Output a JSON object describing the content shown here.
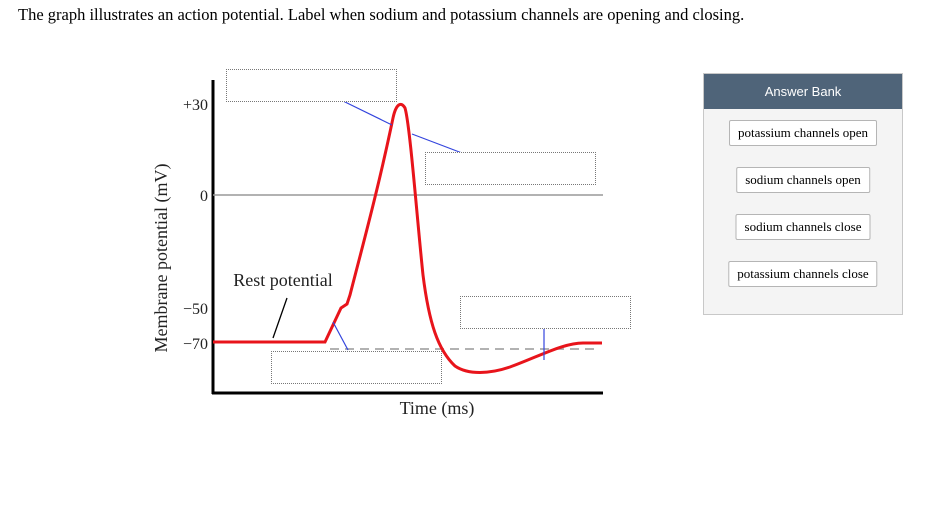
{
  "question": "The graph illustrates an action potential. Label when sodium and potassium channels are opening and closing.",
  "graph": {
    "y_axis_label": "Membrane potential (mV)",
    "x_axis_label": "Time (ms)",
    "y_ticks": [
      "+30",
      "0",
      "−50",
      "−70"
    ],
    "rest_label": "Rest potential",
    "trace_color": "#e8141b",
    "leader_color": "#3344dd"
  },
  "drop_targets": [
    {
      "id": "target-peak-top",
      "value": ""
    },
    {
      "id": "target-falling",
      "value": ""
    },
    {
      "id": "target-undershoot",
      "value": ""
    },
    {
      "id": "target-threshold",
      "value": ""
    }
  ],
  "answer_bank": {
    "title": "Answer Bank",
    "items": [
      "potassium channels open",
      "sodium channels open",
      "sodium channels close",
      "potassium channels close"
    ]
  }
}
